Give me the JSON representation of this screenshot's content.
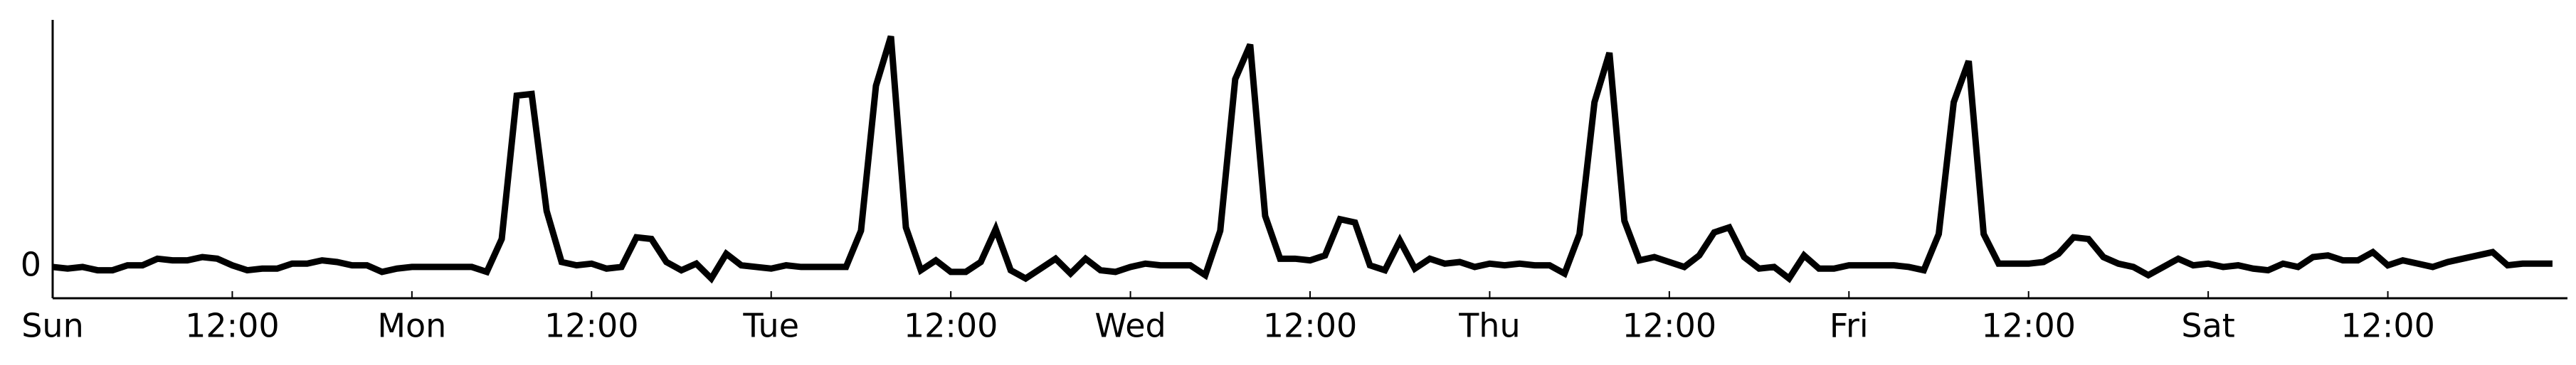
{
  "chart_data": {
    "type": "line",
    "x": [
      0,
      1,
      2,
      3,
      4,
      5,
      6,
      7,
      8,
      9,
      10,
      11,
      12,
      13,
      14,
      15,
      16,
      17,
      18,
      19,
      20,
      21,
      22,
      23,
      24,
      25,
      26,
      27,
      28,
      29,
      30,
      31,
      32,
      33,
      34,
      35,
      36,
      37,
      38,
      39,
      40,
      41,
      42,
      43,
      44,
      45,
      46,
      47,
      48,
      49,
      50,
      51,
      52,
      53,
      54,
      55,
      56,
      57,
      58,
      59,
      60,
      61,
      62,
      63,
      64,
      65,
      66,
      67,
      68,
      69,
      70,
      71,
      72,
      73,
      74,
      75,
      76,
      77,
      78,
      79,
      80,
      81,
      82,
      83,
      84,
      85,
      86,
      87,
      88,
      89,
      90,
      91,
      92,
      93,
      94,
      95,
      96,
      97,
      98,
      99,
      100,
      101,
      102,
      103,
      104,
      105,
      106,
      107,
      108,
      109,
      110,
      111,
      112,
      113,
      114,
      115,
      116,
      117,
      118,
      119,
      120,
      121,
      122,
      123,
      124,
      125,
      126,
      127,
      128,
      129,
      130,
      131,
      132,
      133,
      134,
      135,
      136,
      137,
      138,
      139,
      140,
      141,
      142,
      143,
      144,
      145,
      146,
      147,
      148,
      149,
      150,
      151,
      152,
      153,
      154,
      155,
      156,
      157,
      158,
      159,
      160,
      161,
      162,
      163,
      164,
      165,
      166,
      167
    ],
    "series": [
      {
        "color": "#000000",
        "values": [
          0,
          -0.1,
          0,
          -0.2,
          -0.2,
          0.1,
          0.1,
          0.5,
          0.4,
          0.4,
          0.6,
          0.5,
          0.1,
          -0.2,
          -0.1,
          -0.1,
          0.2,
          0.2,
          0.4,
          0.3,
          0.1,
          0.1,
          -0.3,
          -0.1,
          0,
          0,
          0,
          0,
          0,
          -0.3,
          1.7,
          10.4,
          10.5,
          3.4,
          0.3,
          0.1,
          0.2,
          -0.1,
          0,
          1.8,
          1.7,
          0.3,
          -0.2,
          0.2,
          -0.7,
          0.8,
          0.1,
          0,
          -0.1,
          0.1,
          0,
          0,
          0,
          0,
          2.2,
          11,
          14,
          2.4,
          -0.2,
          0.4,
          -0.3,
          -0.3,
          0.3,
          2.3,
          -0.2,
          -0.7,
          -0.1,
          0.5,
          -0.4,
          0.5,
          -0.2,
          -0.3,
          0,
          0.2,
          0.1,
          0.1,
          0.1,
          -0.5,
          2.2,
          11.4,
          13.5,
          3.1,
          0.5,
          0.5,
          0.4,
          0.7,
          2.9,
          2.7,
          0.1,
          -0.2,
          1.6,
          -0.1,
          0.5,
          0.2,
          0.3,
          0,
          0.2,
          0.1,
          0.2,
          0.1,
          0.1,
          -0.4,
          2,
          10,
          13,
          2.8,
          0.4,
          0.6,
          0.3,
          0,
          0.7,
          2.1,
          2.4,
          0.6,
          -0.1,
          0,
          -0.7,
          0.7,
          -0.1,
          -0.1,
          0.1,
          0.1,
          0.1,
          0.1,
          0,
          -0.2,
          2,
          10,
          12.5,
          2,
          0.2,
          0.2,
          0.2,
          0.3,
          0.8,
          1.8,
          1.7,
          0.6,
          0.2,
          0,
          -0.5,
          0,
          0.5,
          0.1,
          0.2,
          0,
          0.1,
          -0.1,
          -0.2,
          0.2,
          0,
          0.6,
          0.7,
          0.4,
          0.4,
          0.9,
          0.1,
          0.4,
          0.2,
          0,
          0.3,
          0.5,
          0.7,
          0.9,
          0.1,
          0.2,
          0.2,
          0.2
        ]
      }
    ],
    "xlim": [
      0,
      168
    ],
    "ylim": [
      -1.9,
      15
    ],
    "xticks": [
      {
        "value": 0,
        "label": "Sun"
      },
      {
        "value": 12,
        "label": "12:00"
      },
      {
        "value": 24,
        "label": "Mon"
      },
      {
        "value": 36,
        "label": "12:00"
      },
      {
        "value": 48,
        "label": "Tue"
      },
      {
        "value": 60,
        "label": "12:00"
      },
      {
        "value": 72,
        "label": "Wed"
      },
      {
        "value": 84,
        "label": "12:00"
      },
      {
        "value": 96,
        "label": "Thu"
      },
      {
        "value": 108,
        "label": "12:00"
      },
      {
        "value": 120,
        "label": "Fri"
      },
      {
        "value": 132,
        "label": "12:00"
      },
      {
        "value": 144,
        "label": "Sat"
      },
      {
        "value": 156,
        "label": "12:00"
      }
    ],
    "yticks": [
      0
    ],
    "grid": false
  }
}
